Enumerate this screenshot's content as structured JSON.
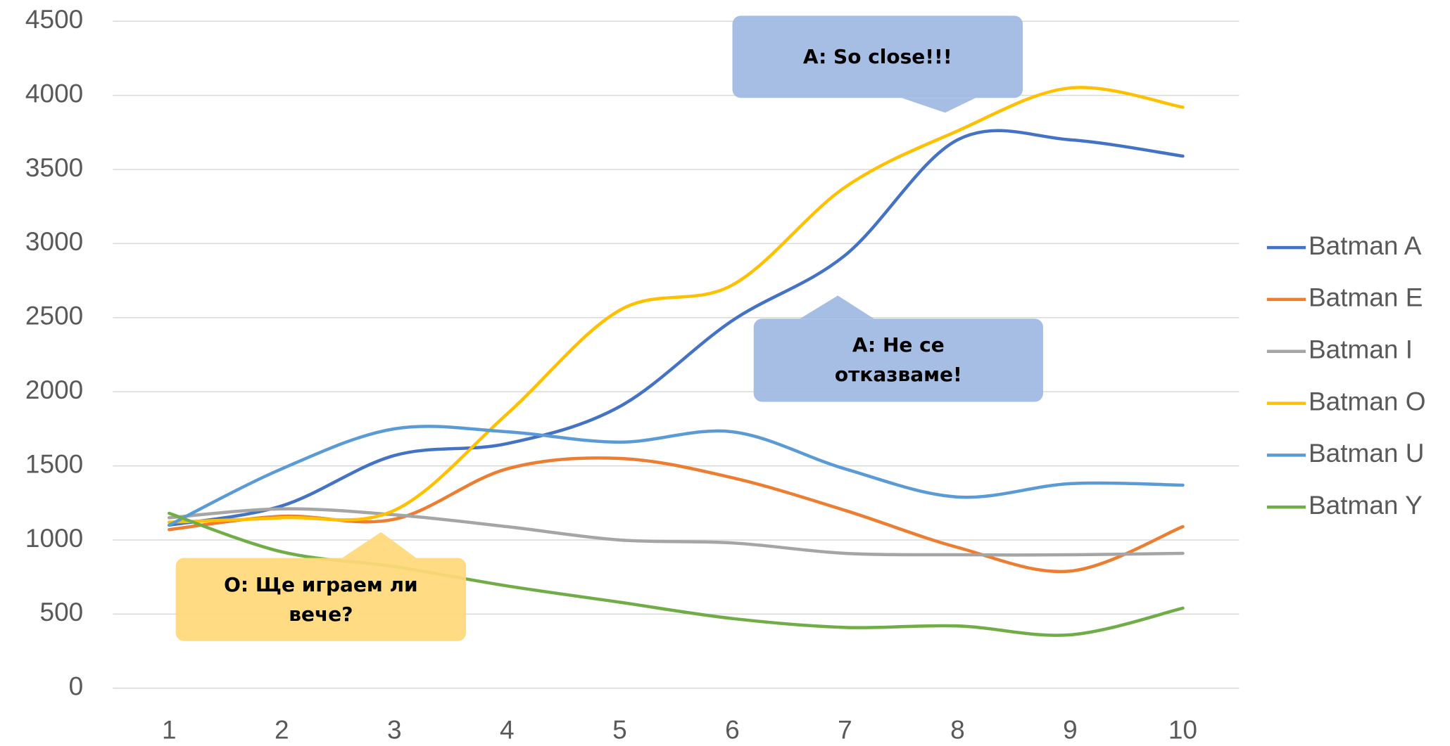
{
  "chart_data": {
    "type": "line",
    "categories": [
      "1",
      "2",
      "3",
      "4",
      "5",
      "6",
      "7",
      "8",
      "9",
      "10"
    ],
    "series": [
      {
        "name": "Batman A",
        "color": "#4472c4",
        "values": [
          1100,
          1230,
          1570,
          1650,
          1900,
          2480,
          2920,
          3700,
          3700,
          3590
        ]
      },
      {
        "name": "Batman E",
        "color": "#ed7d31",
        "values": [
          1070,
          1160,
          1140,
          1480,
          1550,
          1420,
          1200,
          950,
          790,
          1090
        ]
      },
      {
        "name": "Batman I",
        "color": "#a5a5a5",
        "values": [
          1150,
          1210,
          1170,
          1090,
          1000,
          980,
          910,
          900,
          900,
          910
        ]
      },
      {
        "name": "Batman O",
        "color": "#ffc000",
        "values": [
          1120,
          1150,
          1200,
          1850,
          2550,
          2720,
          3380,
          3760,
          4050,
          3920
        ]
      },
      {
        "name": "Batman U",
        "color": "#5b9bd5",
        "values": [
          1100,
          1480,
          1750,
          1730,
          1660,
          1730,
          1480,
          1290,
          1380,
          1370
        ]
      },
      {
        "name": "Batman Y",
        "color": "#70ad47",
        "values": [
          1180,
          920,
          820,
          690,
          580,
          470,
          410,
          420,
          360,
          540
        ]
      }
    ],
    "ylim": [
      0,
      4500
    ],
    "yticks": [
      0,
      500,
      1000,
      1500,
      2000,
      2500,
      3000,
      3500,
      4000,
      4500
    ],
    "grid": true,
    "smooth": true,
    "legend": "right",
    "annotations": [
      {
        "text": "A: So close!!!",
        "color": "#a0b8e2"
      },
      {
        "text": "A: Не се отказваме!",
        "color": "#a0b8e2"
      },
      {
        "text": "O: Ще играем ли вече?",
        "color": "#ffd97a"
      }
    ]
  }
}
